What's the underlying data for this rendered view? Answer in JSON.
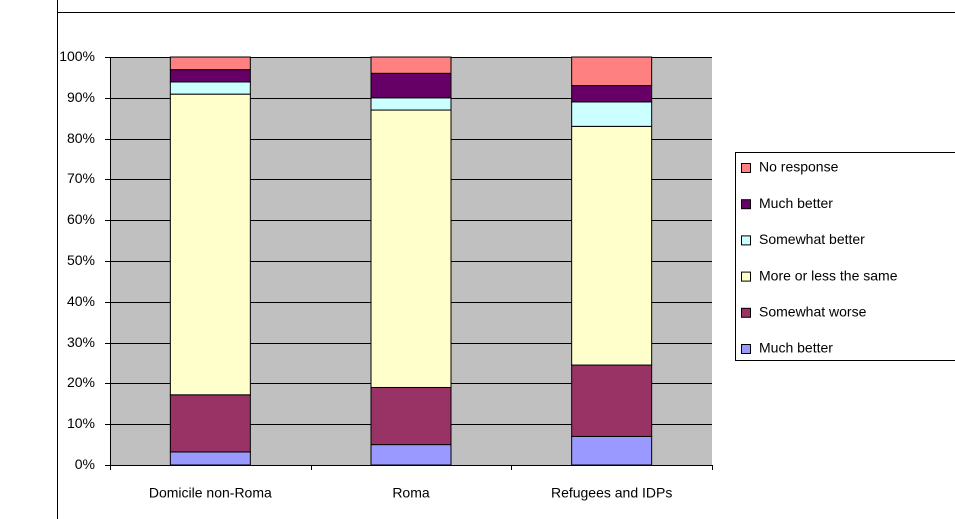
{
  "chart_data": {
    "type": "stacked-bar",
    "categories": [
      "Domicile non-Roma",
      "Roma",
      "Refugees and IDPs"
    ],
    "series": [
      {
        "name": "Much better",
        "color": "#9999ff",
        "values": [
          3.2,
          5,
          7
        ]
      },
      {
        "name": "Somewhat worse",
        "color": "#993366",
        "values": [
          14,
          14,
          17.5
        ]
      },
      {
        "name": "More or less the same",
        "color": "#ffffcc",
        "values": [
          73.7,
          68,
          58.5
        ]
      },
      {
        "name": "Somewhat better",
        "color": "#ccffff",
        "values": [
          3,
          3,
          6
        ]
      },
      {
        "name": "Much better",
        "color": "#660066",
        "values": [
          3,
          6,
          4
        ]
      },
      {
        "name": "No response",
        "color": "#ff8080",
        "values": [
          3.1,
          4,
          7
        ]
      }
    ],
    "ylim": [
      0,
      100
    ],
    "yticks": [
      {
        "value": 0,
        "label": "0%"
      },
      {
        "value": 10,
        "label": "10%"
      },
      {
        "value": 20,
        "label": "20%"
      },
      {
        "value": 30,
        "label": "30%"
      },
      {
        "value": 40,
        "label": "40%"
      },
      {
        "value": 50,
        "label": "50%"
      },
      {
        "value": 60,
        "label": "60%"
      },
      {
        "value": 70,
        "label": "70%"
      },
      {
        "value": 80,
        "label": "80%"
      },
      {
        "value": 90,
        "label": "90%"
      },
      {
        "value": 100,
        "label": "100%"
      }
    ],
    "grid": true,
    "legend": "right"
  }
}
